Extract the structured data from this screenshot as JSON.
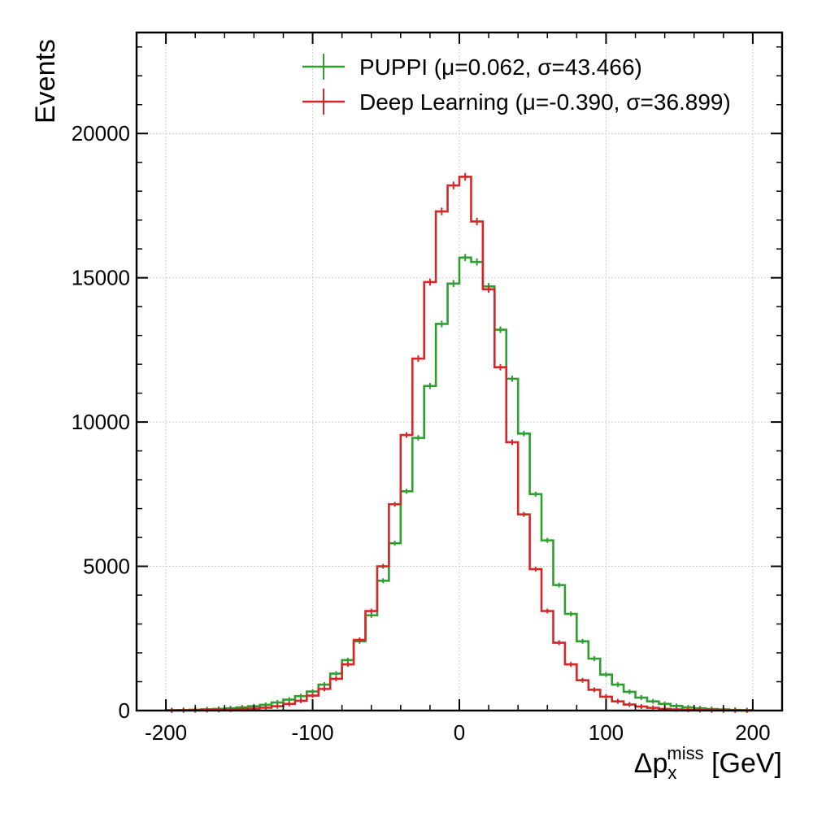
{
  "chart_data": {
    "type": "histogram",
    "xlabel": {
      "main": "Δp",
      "sub": "x",
      "sup": "miss",
      "unit": " [GeV]"
    },
    "ylabel": "Events",
    "xlim": [
      -220,
      220
    ],
    "ylim": [
      0,
      23500
    ],
    "xticks": [
      -200,
      -100,
      0,
      100,
      200
    ],
    "xtick_labels": [
      "-200",
      "-100",
      "0",
      "100",
      "200"
    ],
    "yticks": [
      0,
      5000,
      10000,
      15000,
      20000
    ],
    "ytick_labels": [
      "0",
      "5000",
      "10000",
      "15000",
      "20000"
    ],
    "grid": true,
    "legend_position": "top-center",
    "bin_edges": [
      -200,
      -192,
      -184,
      -176,
      -168,
      -160,
      -152,
      -144,
      -136,
      -128,
      -120,
      -112,
      -104,
      -96,
      -88,
      -80,
      -72,
      -64,
      -56,
      -48,
      -40,
      -32,
      -24,
      -16,
      -8,
      0,
      8,
      16,
      24,
      32,
      40,
      48,
      56,
      64,
      72,
      80,
      88,
      96,
      104,
      112,
      120,
      128,
      136,
      144,
      152,
      160,
      168,
      176,
      184,
      192,
      200
    ],
    "series": [
      {
        "name": "PUPPI (μ=0.062, σ=43.466)",
        "color": "#2ca02c",
        "values": [
          15,
          20,
          30,
          45,
          60,
          80,
          110,
          150,
          200,
          280,
          380,
          500,
          660,
          900,
          1280,
          1750,
          2400,
          3300,
          4500,
          5800,
          7600,
          9450,
          11250,
          13400,
          14800,
          15700,
          15550,
          14700,
          13200,
          11500,
          9600,
          7500,
          5900,
          4350,
          3350,
          2400,
          1800,
          1250,
          900,
          650,
          450,
          320,
          230,
          160,
          110,
          80,
          55,
          40,
          25,
          15
        ]
      },
      {
        "name": "Deep Learning (μ=-0.390, σ=36.899)",
        "color": "#d62728",
        "values": [
          5,
          8,
          12,
          18,
          25,
          35,
          50,
          70,
          100,
          150,
          230,
          340,
          520,
          750,
          1100,
          1600,
          2450,
          3450,
          5000,
          7150,
          9550,
          12200,
          14850,
          17300,
          18200,
          18500,
          16950,
          14600,
          11900,
          9300,
          6800,
          4900,
          3450,
          2350,
          1600,
          1050,
          720,
          480,
          320,
          210,
          140,
          95,
          60,
          40,
          28,
          18,
          12,
          8,
          5,
          3
        ]
      }
    ]
  }
}
